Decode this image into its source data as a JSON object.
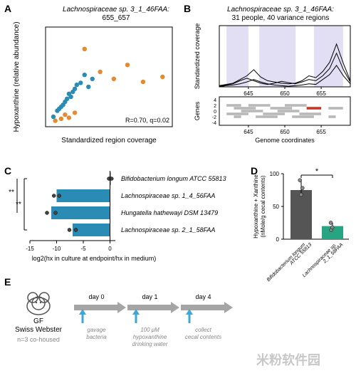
{
  "panelA": {
    "label": "A",
    "title_line1": "Lachnospiraceae sp. 3_1_46FAA:",
    "title_line2": "655_657",
    "xlabel": "Standardized region coverage",
    "ylabel": "Hypoxanthine (relative abundance)",
    "stats": "R=0.70, q=0.02",
    "xlim": [
      0,
      65
    ],
    "ylim": [
      0,
      1
    ],
    "points_blue": [
      [
        4,
        0.1
      ],
      [
        6,
        0.16
      ],
      [
        7,
        0.18
      ],
      [
        8,
        0.2
      ],
      [
        10,
        0.25
      ],
      [
        12,
        0.33
      ],
      [
        13,
        0.3
      ],
      [
        14,
        0.35
      ],
      [
        16,
        0.42
      ],
      [
        18,
        0.44
      ],
      [
        20,
        0.52
      ],
      [
        22,
        0.4
      ],
      [
        24,
        0.48
      ],
      [
        11,
        0.28
      ],
      [
        9,
        0.22
      ],
      [
        15,
        0.38
      ]
    ],
    "points_orange": [
      [
        5,
        0.06
      ],
      [
        8,
        0.08
      ],
      [
        10,
        0.12
      ],
      [
        12,
        0.09
      ],
      [
        15,
        0.14
      ],
      [
        20,
        0.78
      ],
      [
        28,
        0.55
      ],
      [
        35,
        0.48
      ],
      [
        42,
        0.62
      ],
      [
        50,
        0.45
      ],
      [
        60,
        0.5
      ]
    ],
    "color_blue": "#2a8bb5",
    "color_orange": "#e58a2e"
  },
  "panelB": {
    "label": "B",
    "title_line1": "Lachnospiraceae sp. 3_1_46FAA:",
    "title_line2": "31 people, 40 variance regions",
    "ylabel_top": "Standardized coverage",
    "ylabel_bot": "Genes",
    "xlabel": "Genome coordinates",
    "highlight_color": "#cfc8ec",
    "highlight_regions": [
      [
        642,
        645
      ],
      [
        646.5,
        651.5
      ],
      [
        654,
        658
      ]
    ],
    "xticks": [
      645,
      650,
      655
    ],
    "yticks_bot": [
      -4,
      -2,
      0,
      2,
      4
    ],
    "coverage_profiles": [
      [
        0,
        0.02,
        0.03,
        0.05,
        0.08,
        0.12,
        0.08,
        0.05,
        0.03,
        0.02,
        0.01,
        0.02,
        0.03,
        0.05,
        0.04,
        0.12,
        0.2,
        0.35,
        0.18,
        0.05
      ],
      [
        0.01,
        0.03,
        0.05,
        0.1,
        0.14,
        0.1,
        0.06,
        0.04,
        0.06,
        0.09,
        0.07,
        0.05,
        0.08,
        0.12,
        0.1,
        0.18,
        0.3,
        0.55,
        0.28,
        0.08
      ],
      [
        0.02,
        0.04,
        0.06,
        0.12,
        0.18,
        0.28,
        0.16,
        0.1,
        0.08,
        0.06,
        0.05,
        0.06,
        0.1,
        0.18,
        0.15,
        0.25,
        0.4,
        0.7,
        0.38,
        0.1
      ]
    ],
    "gene_tracks": [
      {
        "y": 2,
        "segs": [
          [
            642,
            644,
            "gray"
          ],
          [
            645,
            648,
            "gray"
          ],
          [
            650,
            653,
            "gray"
          ]
        ]
      },
      {
        "y": 1,
        "segs": [
          [
            643,
            646,
            "gray"
          ],
          [
            648,
            651,
            "gray"
          ],
          [
            653,
            655,
            "red"
          ],
          [
            656,
            658,
            "gray"
          ]
        ]
      },
      {
        "y": 0,
        "segs": [
          [
            644,
            647,
            "gray"
          ],
          [
            649,
            652,
            "gray"
          ]
        ]
      },
      {
        "y": -1,
        "segs": [
          [
            642,
            645,
            "gray"
          ],
          [
            647,
            650,
            "gray"
          ],
          [
            652,
            655,
            "gray"
          ]
        ]
      },
      {
        "y": -2,
        "segs": [
          [
            643,
            644,
            "gray"
          ],
          [
            646,
            649,
            "gray"
          ],
          [
            651,
            654,
            "gray"
          ],
          [
            656,
            657,
            "gray"
          ]
        ]
      }
    ],
    "gray": "#b8b8b8",
    "red": "#c0392b"
  },
  "panelC": {
    "label": "C",
    "bars": [
      {
        "label": "Bifidobacterium longum ATCC 55813",
        "value": 0.0,
        "color": "#444444",
        "dots": [
          -0.2,
          0.3
        ]
      },
      {
        "label": "Lachnospiraceae sp. 1_4_56FAA",
        "value": -10,
        "color": "#2a8bb5",
        "dots": [
          -10.5,
          -9.5
        ]
      },
      {
        "label": "Hungatella hathewayi DSM 13479",
        "value": -11,
        "color": "#2a8bb5",
        "dots": [
          -11.8,
          -10.2
        ]
      },
      {
        "label": "Lachnospiraceae sp. 2_1_58FAA",
        "value": -7,
        "color": "#2a8bb5",
        "dots": [
          -7.6,
          -6.4
        ]
      }
    ],
    "xlabel": "log2(hx in culture at endpoint/hx in medium)",
    "xticks": [
      -15,
      -10,
      -5,
      0
    ],
    "sig1": "**",
    "sig2": "**"
  },
  "panelD": {
    "label": "D",
    "ylabel": "Hypoxanthine + Xanthine\n(nMole/g cecal contents)",
    "bars": [
      {
        "label": "Bifidobacterium longum\nATCC 55813",
        "value": 75,
        "color": "#555555",
        "dots": [
          68,
          78,
          90
        ]
      },
      {
        "label": "Lachnospiraceae sp.\n2_1_58FAA",
        "value": 20,
        "color": "#27a582",
        "dots": [
          14,
          18,
          25
        ]
      }
    ],
    "yticks": [
      0,
      50,
      100
    ],
    "sig": "*"
  },
  "panelE": {
    "label": "E",
    "strain_label": "GF\nSwiss Webster",
    "n_label": "n=3 co-housed",
    "timeline": [
      {
        "top": "day 0",
        "bottom": "gavage\nbacteria"
      },
      {
        "top": "day 1",
        "bottom": "100 μM\nhypoxanthine\ndrinking water"
      },
      {
        "top": "day 4",
        "bottom": "collect\ncecal contents"
      }
    ],
    "arrow_color": "#3aa8d8",
    "timeline_gray": "#a5a5a5"
  },
  "watermark": "米粉软件园"
}
